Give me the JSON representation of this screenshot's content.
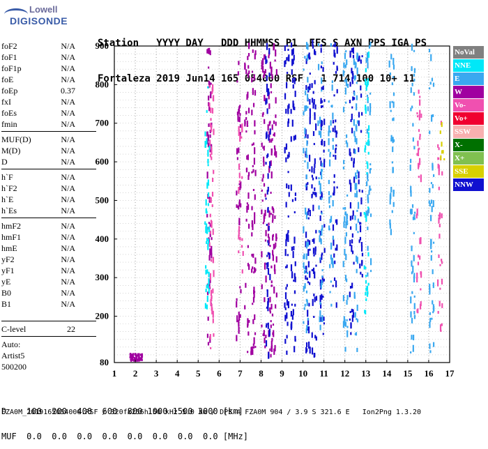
{
  "logo": {
    "line1": "Lowell",
    "line2": "DIGISONDE"
  },
  "header": {
    "line1": "Station   YYYY DAY   DDD HHMMSS P1  FFS S AXN PPS IGA PS",
    "line2": "Fortaleza 2019 Jun14 165 054000 RSF   1 714 100 10+ 11"
  },
  "params_groups": [
    [
      [
        "foF2",
        "N/A"
      ],
      [
        "foF1",
        "N/A"
      ],
      [
        "foF1p",
        "N/A"
      ],
      [
        "foE",
        "N/A"
      ],
      [
        "foEp",
        "0.37"
      ],
      [
        "fxI",
        "N/A"
      ],
      [
        "foEs",
        "N/A"
      ],
      [
        "fmin",
        "N/A"
      ]
    ],
    [
      [
        "MUF(D)",
        "N/A"
      ],
      [
        "M(D)",
        "N/A"
      ],
      [
        "D",
        "N/A"
      ]
    ],
    [
      [
        "h`F",
        "N/A"
      ],
      [
        "h`F2",
        "N/A"
      ],
      [
        "h`E",
        "N/A"
      ],
      [
        "h`Es",
        "N/A"
      ]
    ],
    [
      [
        "hmF2",
        "N/A"
      ],
      [
        "hmF1",
        "N/A"
      ],
      [
        "hmE",
        "N/A"
      ],
      [
        "yF2",
        "N/A"
      ],
      [
        "yF1",
        "N/A"
      ],
      [
        "yE",
        "N/A"
      ],
      [
        "B0",
        "N/A"
      ],
      [
        "B1",
        "N/A"
      ]
    ]
  ],
  "clevel": {
    "label": "C-level",
    "value": "22"
  },
  "auto": {
    "line1": "Auto:",
    "line2": "Artist5",
    "line3": "500200"
  },
  "legend": [
    {
      "label": "NoVal",
      "color": "#808080"
    },
    {
      "label": "NNE",
      "color": "#00e8f8"
    },
    {
      "label": "E",
      "color": "#3aa8f0"
    },
    {
      "label": "W",
      "color": "#a000a0"
    },
    {
      "label": "Vo-",
      "color": "#f050b0"
    },
    {
      "label": "Vo+",
      "color": "#f00030"
    },
    {
      "label": "SSW",
      "color": "#f8b0b0"
    },
    {
      "label": "X-",
      "color": "#007000"
    },
    {
      "label": "X+",
      "color": "#80c050"
    },
    {
      "label": "SSE",
      "color": "#d8d000"
    },
    {
      "label": "NNW",
      "color": "#1010d0"
    }
  ],
  "bottom": {
    "line1": "D    100  200  400  600  800 1000 1500 3000 [km]",
    "line2": "MUF  0.0  0.0  0.0  0.0  0.0  0.0  0.0  0.0 [MHz]"
  },
  "footer": "FZA0M_2019165054000.RSF / 320fx256h 50 kHz 5.0 km / DPS-4 FZA0M 904 / 3.9 S 321.6 E   Ion2Png 1.3.20",
  "chart_data": {
    "type": "scatter",
    "xlabel": "",
    "ylabel": "",
    "xlim": [
      1,
      17
    ],
    "ylim": [
      80,
      900
    ],
    "xticks": [
      1,
      2,
      3,
      4,
      5,
      6,
      7,
      8,
      9,
      10,
      11,
      12,
      13,
      14,
      15,
      16,
      17
    ],
    "yticks": [
      200,
      300,
      400,
      500,
      600,
      700,
      800,
      900
    ],
    "ytick_extra": [
      80
    ],
    "grid": true,
    "series": [
      {
        "color_key": "W",
        "clusters": [
          {
            "x": 5.5,
            "h": [
              120,
              900
            ]
          },
          {
            "x": 6.9,
            "h": [
              90,
              880
            ]
          },
          {
            "x": 7.3,
            "h": [
              90,
              900
            ]
          },
          {
            "x": 7.6,
            "h": [
              90,
              900
            ]
          },
          {
            "x": 8.1,
            "h": [
              80,
              900
            ]
          },
          {
            "x": 8.4,
            "h": [
              80,
              900
            ]
          },
          {
            "x": 8.6,
            "h": [
              90,
              900
            ]
          }
        ],
        "blob": {
          "x": [
            1.7,
            2.3
          ],
          "h": [
            82,
            100
          ]
        }
      },
      {
        "color_key": "NNW",
        "clusters": [
          {
            "x": 8.3,
            "h": [
              80,
              900
            ]
          },
          {
            "x": 9.2,
            "h": [
              100,
              900
            ]
          },
          {
            "x": 9.5,
            "h": [
              100,
              900
            ]
          },
          {
            "x": 10.2,
            "h": [
              90,
              900
            ]
          },
          {
            "x": 10.5,
            "h": [
              90,
              900
            ]
          },
          {
            "x": 10.9,
            "h": [
              150,
              900
            ]
          },
          {
            "x": 11.5,
            "h": [
              200,
              900
            ]
          },
          {
            "x": 12.3,
            "h": [
              150,
              900
            ]
          },
          {
            "x": 12.7,
            "h": [
              300,
              900
            ]
          }
        ]
      },
      {
        "color_key": "E",
        "clusters": [
          {
            "x": 10.1,
            "h": [
              100,
              900
            ]
          },
          {
            "x": 10.8,
            "h": [
              150,
              900
            ]
          },
          {
            "x": 11.3,
            "h": [
              200,
              900
            ]
          },
          {
            "x": 12.0,
            "h": [
              100,
              900
            ]
          },
          {
            "x": 12.5,
            "h": [
              100,
              900
            ]
          },
          {
            "x": 13.1,
            "h": [
              300,
              900
            ]
          },
          {
            "x": 14.2,
            "h": [
              400,
              900
            ]
          },
          {
            "x": 15.2,
            "h": [
              100,
              900
            ]
          },
          {
            "x": 16.1,
            "h": [
              100,
              900
            ]
          }
        ]
      },
      {
        "color_key": "Vo-",
        "clusters": [
          {
            "x": 5.6,
            "h": [
              100,
              800
            ]
          },
          {
            "x": 7.0,
            "h": [
              300,
              700
            ]
          },
          {
            "x": 15.5,
            "h": [
              200,
              800
            ]
          },
          {
            "x": 16.5,
            "h": [
              150,
              700
            ]
          }
        ]
      },
      {
        "color_key": "NNE",
        "clusters": [
          {
            "x": 5.4,
            "h": [
              200,
              800
            ]
          },
          {
            "x": 13.0,
            "h": [
              200,
              900
            ]
          }
        ]
      },
      {
        "color_key": "SSE",
        "clusters": [
          {
            "x": 16.6,
            "h": [
              600,
              700
            ]
          }
        ]
      }
    ]
  }
}
